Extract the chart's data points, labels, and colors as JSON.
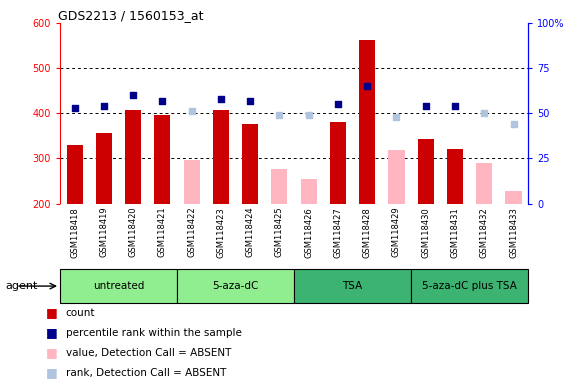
{
  "title": "GDS2213 / 1560153_at",
  "samples": [
    "GSM118418",
    "GSM118419",
    "GSM118420",
    "GSM118421",
    "GSM118422",
    "GSM118423",
    "GSM118424",
    "GSM118425",
    "GSM118426",
    "GSM118427",
    "GSM118428",
    "GSM118429",
    "GSM118430",
    "GSM118431",
    "GSM118432",
    "GSM118433"
  ],
  "count_values": [
    330,
    357,
    408,
    397,
    null,
    408,
    377,
    null,
    null,
    381,
    562,
    null,
    342,
    320,
    null,
    null
  ],
  "count_absent": [
    null,
    null,
    null,
    null,
    296,
    null,
    null,
    277,
    254,
    null,
    null,
    318,
    null,
    null,
    290,
    228
  ],
  "rank_present": [
    53,
    54,
    60,
    57,
    null,
    58,
    57,
    null,
    null,
    55,
    65,
    null,
    54,
    54,
    null,
    null
  ],
  "rank_absent": [
    null,
    null,
    null,
    null,
    51,
    null,
    null,
    49,
    49,
    null,
    null,
    48,
    null,
    null,
    50,
    44
  ],
  "groups": [
    {
      "label": "untreated",
      "start": 0,
      "end": 4,
      "color": "#90ee90"
    },
    {
      "label": "5-aza-dC",
      "start": 4,
      "end": 8,
      "color": "#90ee90"
    },
    {
      "label": "TSA",
      "start": 8,
      "end": 12,
      "color": "#3cb371"
    },
    {
      "label": "5-aza-dC plus TSA",
      "start": 12,
      "end": 16,
      "color": "#3cb371"
    }
  ],
  "ylim_left": [
    200,
    600
  ],
  "ylim_right": [
    0,
    100
  ],
  "yticks_left": [
    200,
    300,
    400,
    500,
    600
  ],
  "yticks_right": [
    0,
    25,
    50,
    75,
    100
  ],
  "count_color": "#cc0000",
  "count_absent_color": "#ffb6c1",
  "rank_present_color": "#00008b",
  "rank_absent_color": "#b0c4de",
  "light_green": "#90ee90",
  "med_green": "#3cb371"
}
